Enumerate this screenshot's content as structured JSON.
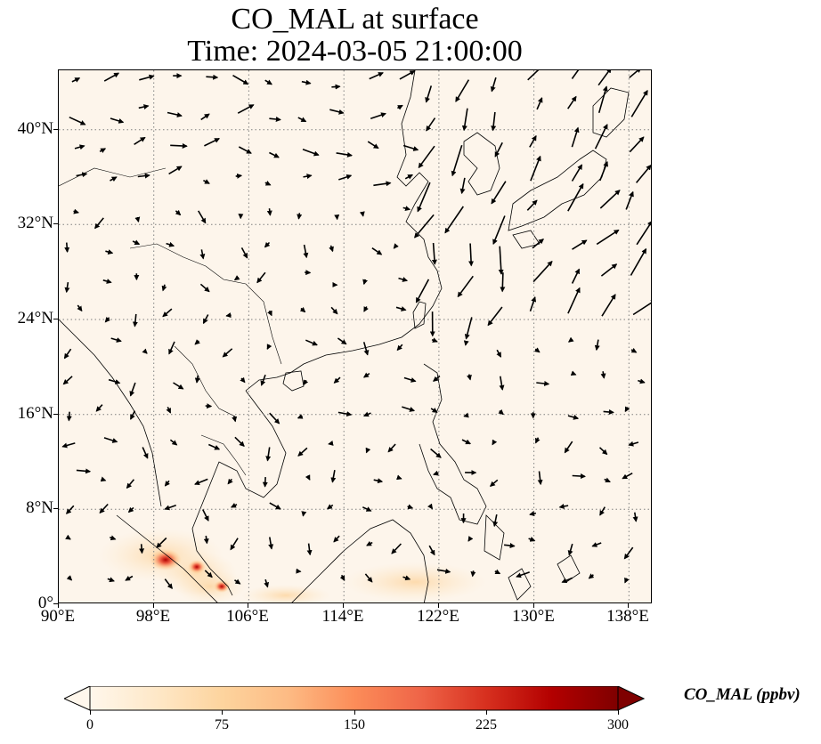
{
  "title": {
    "line1": "CO_MAL at surface",
    "line2": "Time: 2024-03-05 21:00:00"
  },
  "map": {
    "projection": "PlateCarree",
    "lon_range": [
      90,
      140
    ],
    "lat_range": [
      0,
      45
    ],
    "background_color": "#fdf5eb",
    "land_outline_color": "#000000",
    "gridline_style": "dotted",
    "gridline_color": "#808080",
    "lat_ticks": [
      {
        "value": 0,
        "label": "0°"
      },
      {
        "value": 8,
        "label": "8°N"
      },
      {
        "value": 16,
        "label": "16°N"
      },
      {
        "value": 24,
        "label": "24°N"
      },
      {
        "value": 32,
        "label": "32°N"
      },
      {
        "value": 40,
        "label": "40°N"
      }
    ],
    "lon_ticks": [
      {
        "value": 90,
        "label": "90°E"
      },
      {
        "value": 98,
        "label": "98°E"
      },
      {
        "value": 106,
        "label": "106°E"
      },
      {
        "value": 114,
        "label": "114°E"
      },
      {
        "value": 122,
        "label": "122°E"
      },
      {
        "value": 130,
        "label": "130°E"
      },
      {
        "value": 138,
        "label": "138°E"
      }
    ],
    "wind_vectors_shown": true,
    "co_hotspots": [
      {
        "lon": 98.7,
        "lat": 3.6,
        "level": "high"
      },
      {
        "lon": 101.3,
        "lat": 3.1,
        "level": "high"
      },
      {
        "lon": 103.5,
        "lat": 1.5,
        "level": "high"
      }
    ]
  },
  "colorbar": {
    "label": "CO_MAL (ppbv)",
    "cmap": "OrRd",
    "vmin": 0,
    "vmax": 300,
    "extend": "both",
    "ticks": [
      {
        "value": 0,
        "label": "0"
      },
      {
        "value": 75,
        "label": "75"
      },
      {
        "value": 150,
        "label": "150"
      },
      {
        "value": 225,
        "label": "225"
      },
      {
        "value": 300,
        "label": "300"
      }
    ],
    "colors": [
      "#fff7ec",
      "#fee8c8",
      "#fdd49e",
      "#fdbb84",
      "#fc8d59",
      "#ef6548",
      "#d7301f",
      "#b30000",
      "#7f0000"
    ]
  }
}
